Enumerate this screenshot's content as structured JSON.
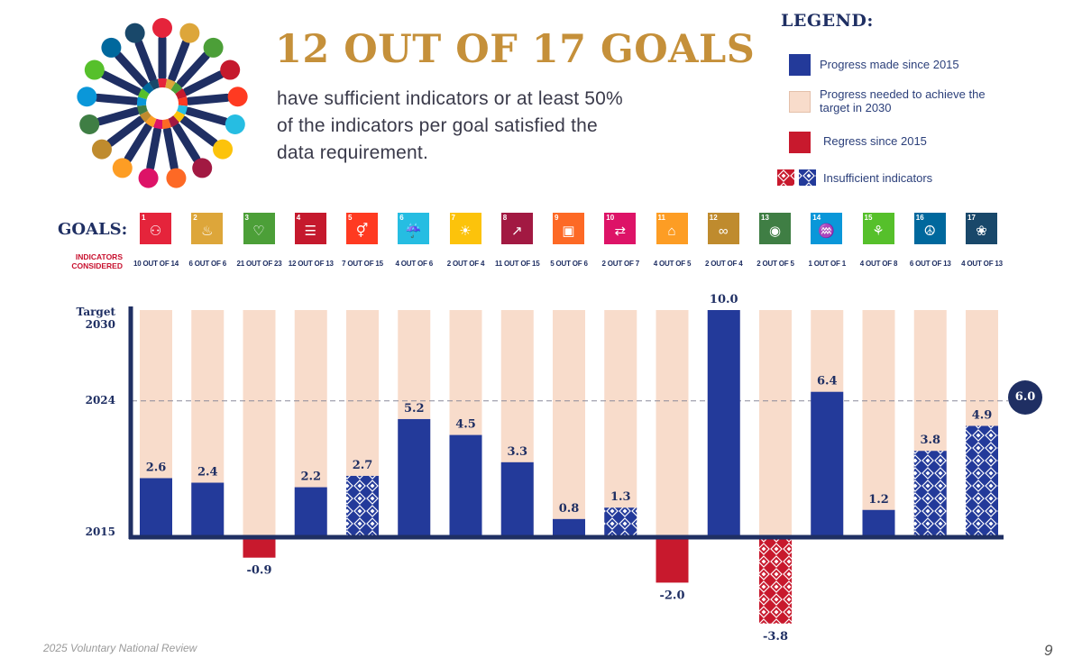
{
  "header": {
    "headline": "12 OUT OF 17 GOALS",
    "headline_color": "#c5903a",
    "subtext_lines": [
      "have sufficient indicators or at least 50%",
      "of the indicators per goal satisfied the",
      "data requirement."
    ]
  },
  "legend": {
    "title": "LEGEND:",
    "items": [
      {
        "label": "Progress made since 2015",
        "color": "#233a9a",
        "kind": "solid"
      },
      {
        "label": "Progress needed to achieve the target in 2030",
        "color": "#f8dccb",
        "kind": "solid"
      },
      {
        "label": "Regress since 2015",
        "color": "#c8192d",
        "kind": "solid"
      },
      {
        "label": "Insufficient indicators",
        "colors": [
          "#c8192d",
          "#233a9a"
        ],
        "kind": "pattern"
      }
    ]
  },
  "goals_row": {
    "label": "GOALS:",
    "indicators_label": "INDICATORS CONSIDERED"
  },
  "chart_data": {
    "type": "bar",
    "categories": [
      "1",
      "2",
      "3",
      "4",
      "5",
      "6",
      "7",
      "8",
      "9",
      "10",
      "11",
      "12",
      "13",
      "14",
      "15",
      "16",
      "17"
    ],
    "tile_colors": [
      "#e5243b",
      "#dda63a",
      "#4c9f38",
      "#c5192d",
      "#ff3a21",
      "#26bde2",
      "#fcc30b",
      "#a21942",
      "#fd6925",
      "#dd1367",
      "#fd9d24",
      "#bf8b2e",
      "#3f7e44",
      "#0a97d9",
      "#56c02b",
      "#00689d",
      "#19486a"
    ],
    "tile_icons": [
      "people-icon",
      "bowl-icon",
      "heartbeat-icon",
      "book-icon",
      "gender-icon",
      "water-drop-icon",
      "sun-icon",
      "growth-chart-icon",
      "cubes-icon",
      "equal-arrows-icon",
      "city-icon",
      "infinity-icon",
      "eye-icon",
      "fish-icon",
      "tree-icon",
      "dove-icon",
      "flower-ring-icon"
    ],
    "indicators_considered": [
      "10 OUT OF 14",
      "6 OUT OF 6",
      "21 OUT OF 23",
      "12 OUT OF 13",
      "7 OUT OF 15",
      "4 OUT OF 6",
      "2 OUT OF 4",
      "11 OUT OF 15",
      "5 OUT OF 6",
      "2 OUT OF 7",
      "4 OUT OF 5",
      "2 OUT OF 4",
      "2 OUT OF 5",
      "1 OUT OF 1",
      "4 OUT OF 8",
      "6 OUT OF 13",
      "4 OUT OF 13"
    ],
    "values": [
      2.6,
      2.4,
      -0.9,
      2.2,
      2.7,
      5.2,
      4.5,
      3.3,
      0.8,
      1.3,
      -2.0,
      10.0,
      -3.8,
      6.4,
      1.2,
      3.8,
      4.9
    ],
    "value_labels": [
      "2.6",
      "2.4",
      "-0.9",
      "2.2",
      "2.7",
      "5.2",
      "4.5",
      "3.3",
      "0.8",
      "1.3",
      "-2.0",
      "10.0",
      "-3.8",
      "6.4",
      "1.2",
      "3.8",
      "4.9"
    ],
    "insufficient": [
      false,
      false,
      false,
      false,
      true,
      false,
      false,
      false,
      false,
      true,
      false,
      false,
      true,
      false,
      false,
      true,
      true
    ],
    "target": 10,
    "reference_2024": 6.0,
    "reference_2024_label": "6.0",
    "y_labels": {
      "target": "Target\n2030",
      "mid": "2024",
      "base": "2015"
    },
    "ylim": [
      -3.8,
      10
    ],
    "colors": {
      "progress": "#233a9a",
      "needed": "#f8dccb",
      "regress": "#c8192d"
    }
  },
  "footer": {
    "report": "2025 Voluntary National Review",
    "page": "9"
  }
}
